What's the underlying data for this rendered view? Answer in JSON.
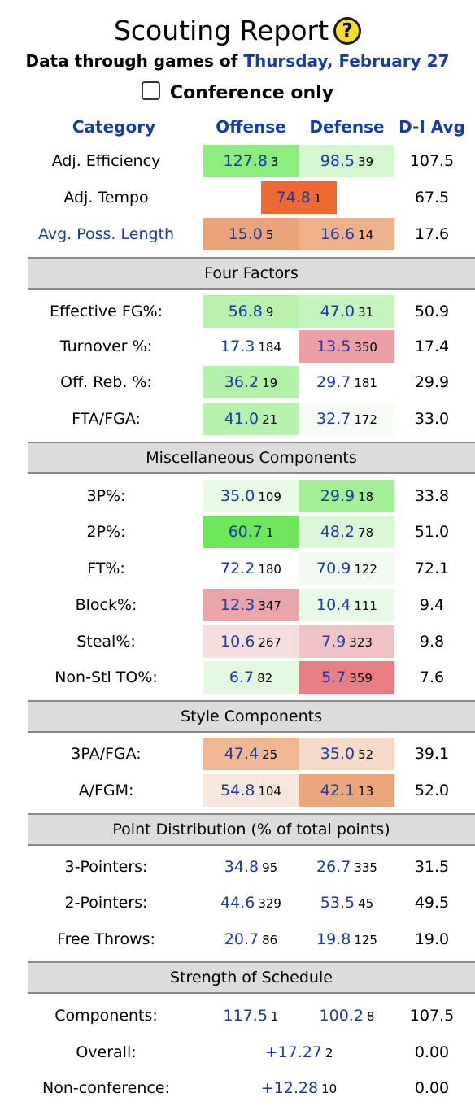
{
  "header": {
    "title": "Scouting Report",
    "help_icon": "?",
    "subtitle_prefix": "Data through games of",
    "subtitle_date": "Thursday, February 27",
    "conference_only_label": "Conference only"
  },
  "columns": {
    "category": "Category",
    "offense": "Offense",
    "defense": "Defense",
    "avg": "D-I Avg"
  },
  "top": [
    {
      "label": "Adj. Efficiency",
      "off": "127.8",
      "off_rank": "3",
      "def": "98.5",
      "def_rank": "39",
      "avg": "107.5"
    },
    {
      "label": "Adj. Tempo",
      "val": "74.8",
      "rank": "1",
      "avg": "67.5"
    },
    {
      "label": "Avg. Poss. Length",
      "off": "15.0",
      "off_rank": "5",
      "def": "16.6",
      "def_rank": "14",
      "avg": "17.6"
    }
  ],
  "four_factors": {
    "title": "Four Factors",
    "rows": [
      {
        "label": "Effective FG%:",
        "off": "56.8",
        "off_rank": "9",
        "def": "47.0",
        "def_rank": "31",
        "avg": "50.9"
      },
      {
        "label": "Turnover %:",
        "off": "17.3",
        "off_rank": "184",
        "def": "13.5",
        "def_rank": "350",
        "avg": "17.4"
      },
      {
        "label": "Off. Reb. %:",
        "off": "36.2",
        "off_rank": "19",
        "def": "29.7",
        "def_rank": "181",
        "avg": "29.9"
      },
      {
        "label": "FTA/FGA:",
        "off": "41.0",
        "off_rank": "21",
        "def": "32.7",
        "def_rank": "172",
        "avg": "33.0"
      }
    ]
  },
  "misc": {
    "title": "Miscellaneous Components",
    "rows": [
      {
        "label": "3P%:",
        "off": "35.0",
        "off_rank": "109",
        "def": "29.9",
        "def_rank": "18",
        "avg": "33.8"
      },
      {
        "label": "2P%:",
        "off": "60.7",
        "off_rank": "1",
        "def": "48.2",
        "def_rank": "78",
        "avg": "51.0"
      },
      {
        "label": "FT%:",
        "off": "72.2",
        "off_rank": "180",
        "def": "70.9",
        "def_rank": "122",
        "avg": "72.1"
      },
      {
        "label": "Block%:",
        "off": "12.3",
        "off_rank": "347",
        "def": "10.4",
        "def_rank": "111",
        "avg": "9.4"
      },
      {
        "label": "Steal%:",
        "off": "10.6",
        "off_rank": "267",
        "def": "7.9",
        "def_rank": "323",
        "avg": "9.8"
      },
      {
        "label": "Non-Stl TO%:",
        "off": "6.7",
        "off_rank": "82",
        "def": "5.7",
        "def_rank": "359",
        "avg": "7.6"
      }
    ]
  },
  "style": {
    "title": "Style Components",
    "rows": [
      {
        "label": "3PA/FGA:",
        "off": "47.4",
        "off_rank": "25",
        "def": "35.0",
        "def_rank": "52",
        "avg": "39.1"
      },
      {
        "label": "A/FGM:",
        "off": "54.8",
        "off_rank": "104",
        "def": "42.1",
        "def_rank": "13",
        "avg": "52.0"
      }
    ]
  },
  "point_dist": {
    "title": "Point Distribution (% of total points)",
    "rows": [
      {
        "label": "3-Pointers:",
        "off": "34.8",
        "off_rank": "95",
        "def": "26.7",
        "def_rank": "335",
        "avg": "31.5"
      },
      {
        "label": "2-Pointers:",
        "off": "44.6",
        "off_rank": "329",
        "def": "53.5",
        "def_rank": "45",
        "avg": "49.5"
      },
      {
        "label": "Free Throws:",
        "off": "20.7",
        "off_rank": "86",
        "def": "19.8",
        "def_rank": "125",
        "avg": "19.0"
      }
    ]
  },
  "sos": {
    "title": "Strength of Schedule",
    "components": {
      "label": "Components:",
      "off": "117.5",
      "off_rank": "1",
      "def": "100.2",
      "def_rank": "8",
      "avg": "107.5"
    },
    "overall": {
      "label": "Overall:",
      "val": "+17.27",
      "rank": "2",
      "avg": "0.00"
    },
    "nonconf": {
      "label": "Non-conference:",
      "val": "+12.28",
      "rank": "10",
      "avg": "0.00"
    }
  },
  "colors": {
    "link_blue": "#1a3aa8",
    "section_bg": "#dcdcdc",
    "green_strong": "#6ee85a",
    "green_light": "#d8f5d6",
    "red_light": "#eaa0a6",
    "orange_tempo": "#ee6a32",
    "peach": "#eba47a"
  }
}
